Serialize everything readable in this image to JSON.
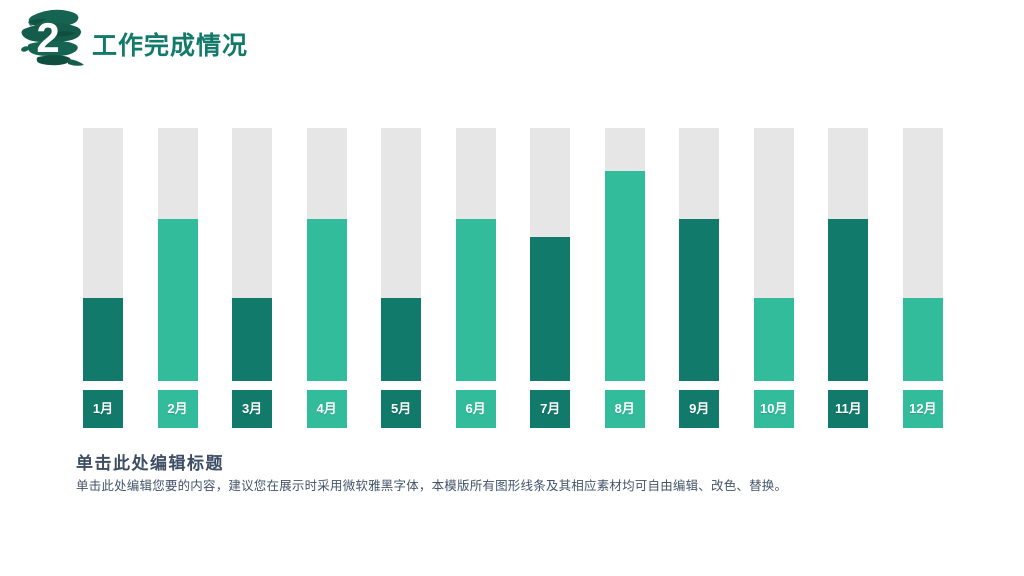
{
  "header": {
    "section_number": "2",
    "title": "工作完成情况"
  },
  "chart_data": {
    "type": "bar",
    "title": "",
    "xlabel": "",
    "ylabel": "",
    "categories": [
      "1月",
      "2月",
      "3月",
      "4月",
      "5月",
      "6月",
      "7月",
      "8月",
      "9月",
      "10月",
      "11月",
      "12月"
    ],
    "values": [
      33,
      64,
      33,
      64,
      33,
      64,
      57,
      83,
      64,
      33,
      64,
      33
    ],
    "ylim": [
      0,
      100
    ],
    "value_unit": "percent_of_full_track",
    "grid": false,
    "legend": false,
    "track_color": "#e6e6e6",
    "bar_color_odd_months": "#117a6a",
    "bar_color_even_months": "#32bc9c"
  },
  "footer": {
    "heading": "单击此处编辑标题",
    "body": "单击此处编辑您要的内容，建议您在展示时采用微软雅黑字体，本模版所有图形线条及其相应素材均可自由编辑、改色、替换。"
  },
  "colors": {
    "accent_dark_teal": "#117a6a",
    "accent_light_green": "#32bc9c",
    "brush_green": "#176352",
    "brush_green_dark": "#0f4f40",
    "header_title_green": "#117a6a",
    "heading_text": "#3d4d63",
    "body_text": "#44546a",
    "track_gray": "#e6e6e6",
    "background": "#ffffff"
  }
}
